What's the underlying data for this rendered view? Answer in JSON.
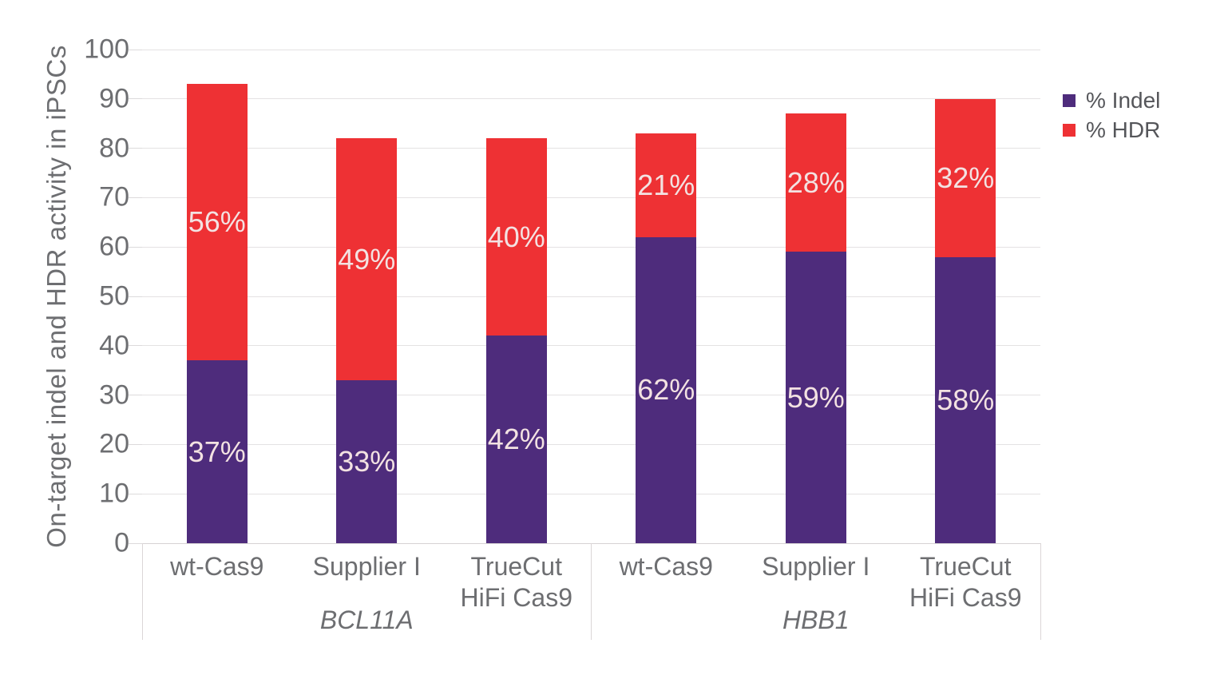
{
  "chart_data": {
    "type": "bar",
    "stacked": true,
    "title": "",
    "xlabel": "",
    "ylabel": "On-target indel and HDR activity in iPSCs",
    "ylim": [
      0,
      100
    ],
    "yticks": [
      0,
      10,
      20,
      30,
      40,
      50,
      60,
      70,
      80,
      90,
      100
    ],
    "grid": true,
    "legend_position": "right",
    "categories": [
      "wt-Cas9",
      "Supplier I",
      "TrueCut\nHiFi Cas9",
      "wt-Cas9",
      "Supplier I",
      "TrueCut\nHiFi Cas9"
    ],
    "group_spans": [
      {
        "label": "BCL11A",
        "from": 0,
        "to": 2
      },
      {
        "label": "HBB1",
        "from": 3,
        "to": 5
      }
    ],
    "series": [
      {
        "name": "% Indel",
        "color": "#4e2c7c",
        "values": [
          37,
          33,
          42,
          62,
          59,
          58
        ],
        "labels": [
          "37%",
          "33%",
          "42%",
          "62%",
          "59%",
          "58%"
        ]
      },
      {
        "name": "% HDR",
        "color": "#ee3134",
        "values": [
          56,
          49,
          40,
          21,
          28,
          32
        ],
        "labels": [
          "56%",
          "49%",
          "40%",
          "21%",
          "28%",
          "32%"
        ]
      }
    ],
    "bar_totals": [
      93,
      82,
      82,
      83,
      87,
      90
    ]
  },
  "colors": {
    "indel": "#4e2c7c",
    "hdr": "#ee3134",
    "segment_label_text": "#f3e2e2",
    "axis_text": "#6d6e71",
    "legend_text": "#55565a",
    "gridline": "#e4e2e3",
    "axis_line": "#d6d3d4",
    "divider": "#dbd6d7",
    "background": "#ffffff"
  }
}
